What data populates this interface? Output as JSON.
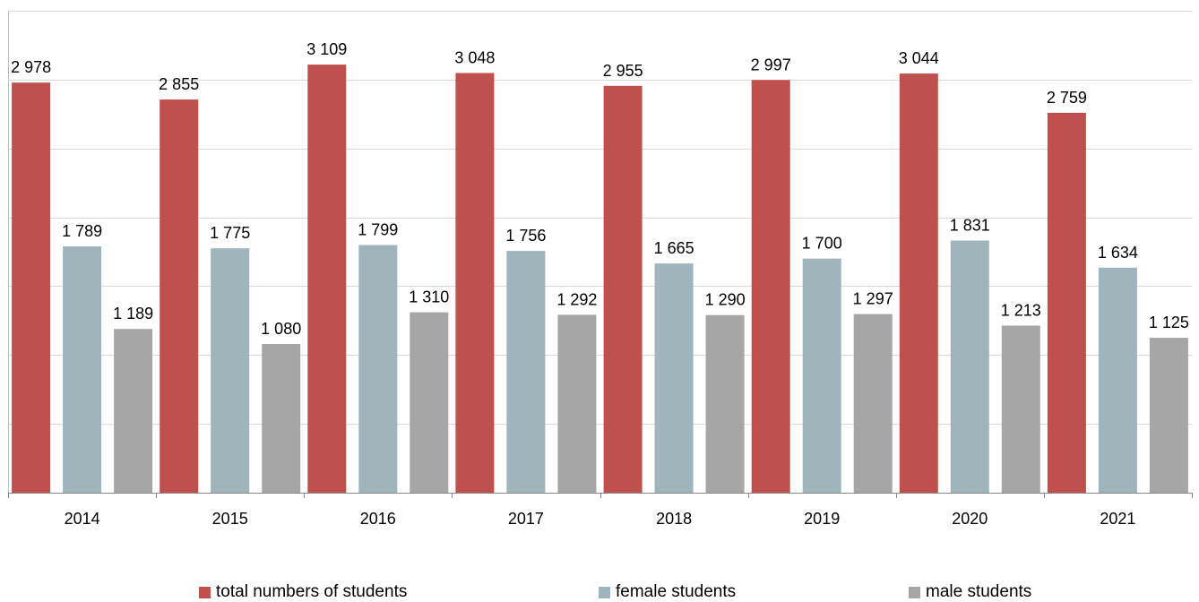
{
  "chart_data": {
    "type": "bar",
    "title": "",
    "xlabel": "",
    "ylabel": "",
    "ylim": [
      0,
      3500
    ],
    "y_gridlines": [
      500,
      1000,
      1500,
      2000,
      2500,
      3000,
      3500
    ],
    "grid": true,
    "legend_position": "bottom",
    "categories": [
      "2014",
      "2015",
      "2016",
      "2017",
      "2018",
      "2019",
      "2020",
      "2021"
    ],
    "series": [
      {
        "name": "total numbers of students",
        "color": "#c0504d",
        "values": [
          2978,
          2855,
          3109,
          3048,
          2955,
          2997,
          3044,
          2759
        ],
        "labels": [
          "2 978",
          "2 855",
          "3 109",
          "3 048",
          "2 955",
          "2 997",
          "3 044",
          "2 759"
        ]
      },
      {
        "name": "female students",
        "color": "#a0b4bc",
        "values": [
          1789,
          1775,
          1799,
          1756,
          1665,
          1700,
          1831,
          1634
        ],
        "labels": [
          "1 789",
          "1 775",
          "1 799",
          "1 756",
          "1 665",
          "1 700",
          "1 831",
          "1 634"
        ]
      },
      {
        "name": "male students",
        "color": "#a6a6a6",
        "values": [
          1189,
          1080,
          1310,
          1292,
          1290,
          1297,
          1213,
          1125
        ],
        "labels": [
          "1 189",
          "1 080",
          "1 310",
          "1 292",
          "1 290",
          "1 297",
          "1 213",
          "1 125"
        ]
      }
    ]
  }
}
